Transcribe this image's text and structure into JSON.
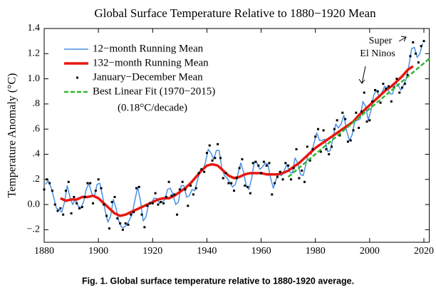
{
  "chart_data": {
    "type": "line",
    "title": "Global Surface Temperature Relative to 1880−1920 Mean",
    "y_label": "Temperature Anomaly (°C)",
    "caption": "Fig. 1.  Global surface temperature relative to 1880-1920 average.",
    "legend_note": "(0.18°C/decade)",
    "annotation": [
      "Super",
      "El Ninos"
    ],
    "legend": "upper left",
    "xlim": [
      1880,
      2022
    ],
    "xticks": [
      1880,
      1900,
      1920,
      1940,
      1960,
      1980,
      2000,
      2020
    ],
    "ylim": [
      -0.3,
      1.4
    ],
    "yticks": [
      {
        "value": -0.2,
        "label": "−.2"
      },
      {
        "value": 0,
        "label": "0.0"
      },
      {
        "value": 0.2,
        "label": ".2"
      },
      {
        "value": 0.4,
        "label": ".4"
      },
      {
        "value": 0.6,
        "label": ".6"
      },
      {
        "value": 0.8,
        "label": ".8"
      },
      {
        "value": 1,
        "label": "1.0"
      },
      1.2,
      1.4
    ],
    "series": [
      {
        "name": "12−month Running Mean",
        "style": "line",
        "color": "#4a90e2",
        "x": [
          1880.5,
          1881.5,
          1882.5,
          1883.5,
          1884.5,
          1885.5,
          1886.5,
          1887.5,
          1888.5,
          1889.5,
          1890.5,
          1891.5,
          1892.5,
          1893.5,
          1894.5,
          1895.5,
          1896.5,
          1897.5,
          1898.5,
          1899.5,
          1900.5,
          1901.5,
          1902.5,
          1903.5,
          1904.5,
          1905.5,
          1906.5,
          1907.5,
          1908.5,
          1909.5,
          1910.5,
          1911.5,
          1912.5,
          1913.5,
          1914.5,
          1915.5,
          1916.5,
          1917.5,
          1918.5,
          1919.5,
          1920.5,
          1921.5,
          1922.5,
          1923.5,
          1924.5,
          1925.5,
          1926.5,
          1927.5,
          1928.5,
          1929.5,
          1930.5,
          1931.5,
          1932.5,
          1933.5,
          1934.5,
          1935.5,
          1936.5,
          1937.5,
          1938.5,
          1939.5,
          1940.5,
          1941.5,
          1942.5,
          1943.5,
          1944.5,
          1945.5,
          1946.5,
          1947.5,
          1948.5,
          1949.5,
          1950.5,
          1951.5,
          1952.5,
          1953.5,
          1954.5,
          1955.5,
          1956.5,
          1957.5,
          1958.5,
          1959.5,
          1960.5,
          1961.5,
          1962.5,
          1963.5,
          1964.5,
          1965.5,
          1966.5,
          1967.5,
          1968.5,
          1969.5,
          1970.5,
          1971.5,
          1972.5,
          1973.5,
          1974.5,
          1975.5,
          1976.5,
          1977.5,
          1978.5,
          1979.5,
          1980.5,
          1981.5,
          1982.5,
          1983.5,
          1984.5,
          1985.5,
          1986.5,
          1987.5,
          1988.5,
          1989.5,
          1990.5,
          1991.5,
          1992.5,
          1993.5,
          1994.5,
          1995.5,
          1996.5,
          1997.5,
          1998.5,
          1999.5,
          2000.5,
          2001.5,
          2002.5,
          2003.5,
          2004.5,
          2005.5,
          2006.5,
          2007.5,
          2008.5,
          2009.5,
          2010.5,
          2011.5,
          2012.5,
          2013.5,
          2014.5,
          2015.5,
          2016.5,
          2017.5,
          2018.5,
          2019.5
        ],
        "values": [
          0.16,
          0.19,
          0.14,
          0.06,
          -0.03,
          -0.04,
          -0.06,
          0.02,
          0.15,
          0.06,
          0.0,
          0.04,
          -0.01,
          -0.03,
          0.02,
          0.12,
          0.17,
          0.09,
          0.06,
          0.16,
          0.17,
          0.07,
          -0.05,
          -0.14,
          -0.09,
          0.04,
          -0.03,
          -0.13,
          -0.18,
          -0.18,
          -0.16,
          -0.12,
          -0.07,
          0.04,
          0.14,
          0.03,
          -0.13,
          -0.1,
          0.0,
          0.01,
          0.05,
          0.05,
          0.01,
          0.02,
          0.04,
          0.12,
          0.13,
          0.08,
          0.0,
          0.02,
          0.15,
          0.15,
          0.06,
          0.07,
          0.12,
          0.11,
          0.19,
          0.27,
          0.27,
          0.34,
          0.44,
          0.41,
          0.36,
          0.43,
          0.43,
          0.29,
          0.23,
          0.21,
          0.17,
          0.14,
          0.16,
          0.25,
          0.33,
          0.26,
          0.15,
          0.12,
          0.21,
          0.34,
          0.33,
          0.28,
          0.3,
          0.33,
          0.32,
          0.21,
          0.13,
          0.2,
          0.24,
          0.23,
          0.27,
          0.32,
          0.26,
          0.25,
          0.37,
          0.33,
          0.24,
          0.23,
          0.32,
          0.41,
          0.4,
          0.49,
          0.57,
          0.51,
          0.51,
          0.52,
          0.42,
          0.43,
          0.53,
          0.64,
          0.61,
          0.64,
          0.71,
          0.59,
          0.51,
          0.55,
          0.66,
          0.67,
          0.68,
          0.82,
          0.78,
          0.67,
          0.75,
          0.87,
          0.91,
          0.86,
          0.89,
          0.94,
          0.93,
          0.88,
          0.88,
          0.97,
          0.95,
          0.91,
          0.95,
          1.0,
          1.11,
          1.24,
          1.25,
          1.17,
          1.2,
          1.28
        ]
      },
      {
        "name": "132−month Running Mean",
        "style": "line",
        "color": "#e8170f",
        "x": [
          1886,
          1888,
          1890,
          1892,
          1894,
          1896,
          1898,
          1900,
          1902,
          1904,
          1906,
          1908,
          1910,
          1912,
          1914,
          1916,
          1918,
          1920,
          1922,
          1924,
          1926,
          1928,
          1930,
          1932,
          1934,
          1936,
          1938,
          1940,
          1942,
          1944,
          1946,
          1948,
          1950,
          1952,
          1954,
          1956,
          1958,
          1960,
          1962,
          1964,
          1966,
          1968,
          1970,
          1972,
          1974,
          1976,
          1978,
          1980,
          1982,
          1984,
          1986,
          1988,
          1990,
          1992,
          1994,
          1996,
          1998,
          2000,
          2002,
          2004,
          2006,
          2008,
          2010,
          2012,
          2014,
          2016
        ],
        "values": [
          0.05,
          0.03,
          0.04,
          0.04,
          0.06,
          0.06,
          0.07,
          0.05,
          0.01,
          -0.03,
          -0.07,
          -0.09,
          -0.08,
          -0.06,
          -0.04,
          -0.02,
          0.0,
          0.02,
          0.04,
          0.05,
          0.05,
          0.07,
          0.1,
          0.13,
          0.17,
          0.22,
          0.27,
          0.31,
          0.32,
          0.31,
          0.27,
          0.23,
          0.21,
          0.22,
          0.24,
          0.25,
          0.25,
          0.25,
          0.24,
          0.24,
          0.24,
          0.25,
          0.27,
          0.3,
          0.33,
          0.37,
          0.41,
          0.45,
          0.48,
          0.51,
          0.54,
          0.57,
          0.6,
          0.63,
          0.66,
          0.71,
          0.75,
          0.79,
          0.83,
          0.87,
          0.91,
          0.94,
          0.98,
          1.02,
          1.07,
          1.1
        ]
      },
      {
        "name": "January−December Mean",
        "style": "dots",
        "color": "#000000",
        "x": [
          1880,
          1881,
          1882,
          1883,
          1884,
          1885,
          1886,
          1887,
          1888,
          1889,
          1890,
          1891,
          1892,
          1893,
          1894,
          1895,
          1896,
          1897,
          1898,
          1899,
          1900,
          1901,
          1902,
          1903,
          1904,
          1905,
          1906,
          1907,
          1908,
          1909,
          1910,
          1911,
          1912,
          1913,
          1914,
          1915,
          1916,
          1917,
          1918,
          1919,
          1920,
          1921,
          1922,
          1923,
          1924,
          1925,
          1926,
          1927,
          1928,
          1929,
          1930,
          1931,
          1932,
          1933,
          1934,
          1935,
          1936,
          1937,
          1938,
          1939,
          1940,
          1941,
          1942,
          1943,
          1944,
          1945,
          1946,
          1947,
          1948,
          1949,
          1950,
          1951,
          1952,
          1953,
          1954,
          1955,
          1956,
          1957,
          1958,
          1959,
          1960,
          1961,
          1962,
          1963,
          1964,
          1965,
          1966,
          1967,
          1968,
          1969,
          1970,
          1971,
          1972,
          1973,
          1974,
          1975,
          1976,
          1977,
          1978,
          1979,
          1980,
          1981,
          1982,
          1983,
          1984,
          1985,
          1986,
          1987,
          1988,
          1989,
          1990,
          1991,
          1992,
          1993,
          1994,
          1995,
          1996,
          1997,
          1998,
          1999,
          2000,
          2001,
          2002,
          2003,
          2004,
          2005,
          2006,
          2007,
          2008,
          2009,
          2010,
          2011,
          2012,
          2013,
          2014,
          2015,
          2016,
          2017,
          2018,
          2019,
          2020
        ],
        "values": [
          0.12,
          0.2,
          0.17,
          0.11,
          0.0,
          -0.05,
          -0.03,
          -0.08,
          0.11,
          0.18,
          -0.07,
          0.06,
          0.01,
          -0.03,
          -0.02,
          0.06,
          0.17,
          0.17,
          0.01,
          0.11,
          0.2,
          0.13,
          0.0,
          -0.09,
          -0.19,
          0.02,
          0.06,
          -0.11,
          -0.15,
          -0.2,
          -0.15,
          -0.16,
          -0.08,
          -0.06,
          0.13,
          0.14,
          -0.08,
          -0.18,
          -0.01,
          0.01,
          0.01,
          0.09,
          0.0,
          0.02,
          0.01,
          0.06,
          0.18,
          0.07,
          0.08,
          -0.08,
          0.12,
          0.18,
          0.12,
          -0.01,
          0.15,
          0.08,
          0.13,
          0.25,
          0.28,
          0.26,
          0.41,
          0.47,
          0.35,
          0.37,
          0.48,
          0.37,
          0.21,
          0.25,
          0.17,
          0.17,
          0.11,
          0.21,
          0.29,
          0.36,
          0.15,
          0.14,
          0.09,
          0.33,
          0.34,
          0.31,
          0.25,
          0.34,
          0.31,
          0.33,
          0.08,
          0.17,
          0.22,
          0.26,
          0.2,
          0.33,
          0.31,
          0.2,
          0.29,
          0.44,
          0.21,
          0.27,
          0.18,
          0.46,
          0.35,
          0.44,
          0.54,
          0.6,
          0.42,
          0.59,
          0.44,
          0.4,
          0.46,
          0.6,
          0.67,
          0.55,
          0.73,
          0.68,
          0.5,
          0.51,
          0.59,
          0.73,
          0.61,
          0.74,
          0.89,
          0.66,
          0.67,
          0.82,
          0.91,
          0.9,
          0.81,
          0.96,
          0.92,
          0.94,
          0.82,
          0.93,
          1.0,
          0.89,
          0.93,
          0.96,
          1.03,
          1.18,
          1.29,
          1.2,
          1.13,
          1.26,
          1.3
        ]
      },
      {
        "name": "Best Linear Fit (1970−2015)",
        "style": "dashed",
        "color": "#2eb82e",
        "x": [
          1970,
          2022
        ],
        "values": [
          0.22,
          1.16
        ]
      }
    ]
  }
}
